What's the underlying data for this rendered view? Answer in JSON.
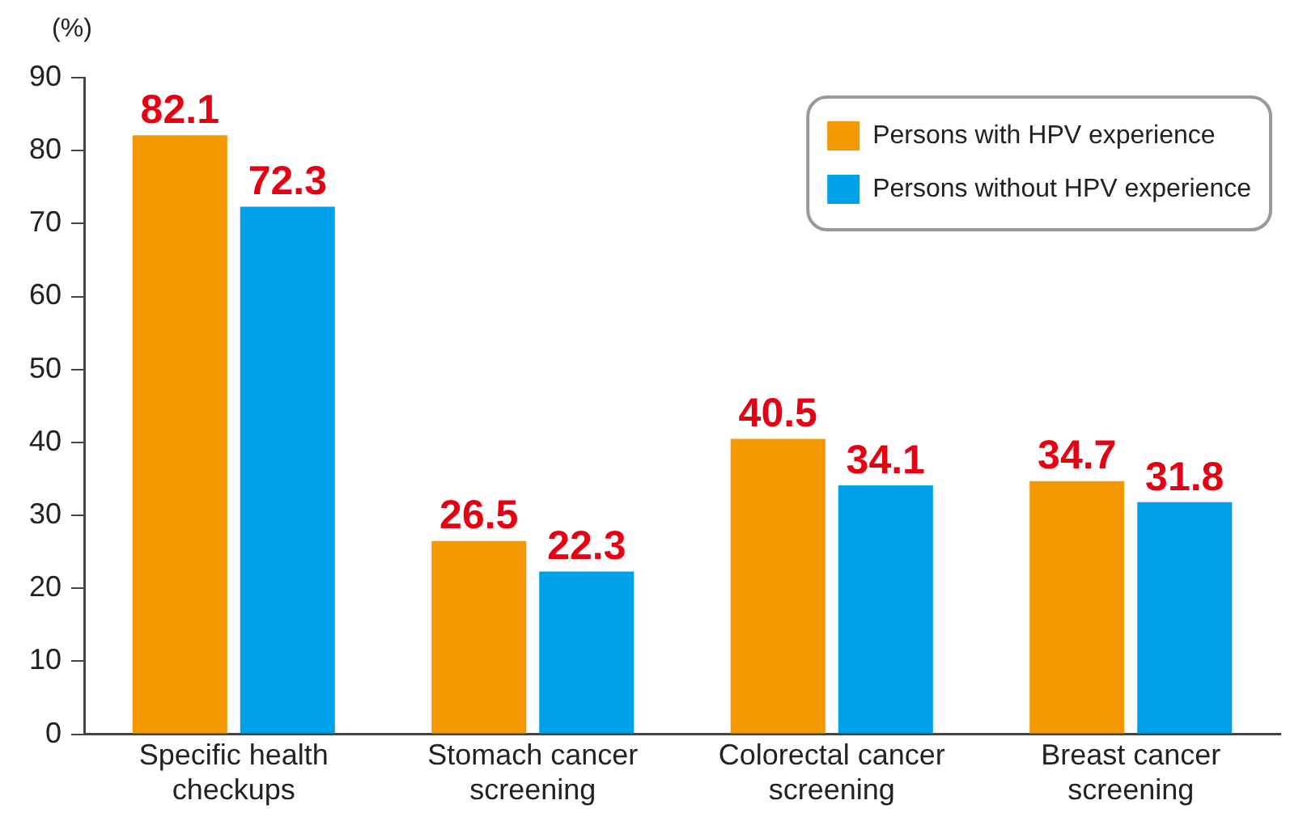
{
  "chart_data": {
    "type": "bar",
    "ylabel": "(%)",
    "categories": [
      "Specific health checkups",
      "Stomach cancer screening",
      "Colorectal cancer screening",
      "Breast cancer screening"
    ],
    "series": [
      {
        "name": "Persons with HPV experience",
        "color": "#f39800",
        "values": [
          82.1,
          26.5,
          40.5,
          34.7
        ]
      },
      {
        "name": "Persons without HPV experience",
        "color": "#00a0e9",
        "values": [
          72.3,
          22.3,
          34.1,
          31.8
        ]
      }
    ],
    "ylim": [
      0,
      90
    ],
    "yticks": [
      0,
      10,
      20,
      30,
      40,
      50,
      60,
      70,
      80,
      90
    ],
    "grid": false,
    "legend": "top right",
    "data_labels": true
  }
}
